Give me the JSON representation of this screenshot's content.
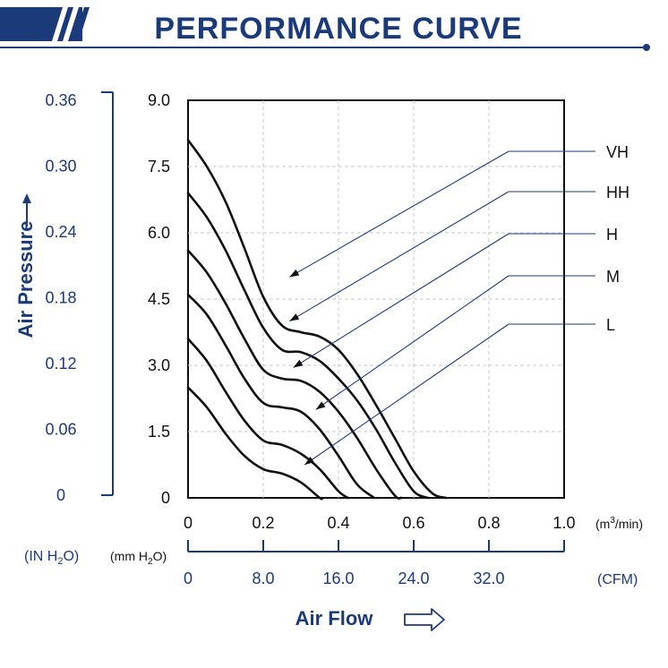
{
  "header": {
    "title": "PERFORMANCE CURVE"
  },
  "colors": {
    "brand": "#1b3a7a",
    "curve": "#111111",
    "grid": "#c8c8c8"
  },
  "chart_data": {
    "type": "line",
    "title": "PERFORMANCE CURVE",
    "xlabel": "Air Flow",
    "ylabel": "Air Pressure",
    "x_unit_primary": "(m3/min)",
    "x_unit_secondary": "(CFM)",
    "y_unit_primary": "(mm H2O)",
    "y_unit_secondary": "(IN H2O)",
    "xlim": [
      0,
      1.0
    ],
    "ylim": [
      0,
      9.0
    ],
    "x_ticks": [
      "0",
      "0.2",
      "0.4",
      "0.6",
      "0.8",
      "1.0"
    ],
    "x_ticks_cfm": [
      "0",
      "8.0",
      "16.0",
      "24.0",
      "32.0"
    ],
    "y_ticks": [
      "0",
      "1.5",
      "3.0",
      "4.5",
      "6.0",
      "7.5",
      "9.0"
    ],
    "y_ticks_inh2o": [
      "0",
      "0.06",
      "0.12",
      "0.18",
      "0.24",
      "0.30",
      "0.36"
    ],
    "grid": true,
    "legend": "right",
    "series": [
      {
        "name": "VH",
        "x": [
          0.0,
          0.05,
          0.1,
          0.15,
          0.2,
          0.25,
          0.3,
          0.35,
          0.4,
          0.45,
          0.5,
          0.55,
          0.6,
          0.65,
          0.686
        ],
        "y": [
          8.1,
          7.5,
          6.7,
          5.65,
          4.55,
          3.9,
          3.75,
          3.65,
          3.35,
          2.8,
          2.1,
          1.35,
          0.6,
          0.1,
          0.0
        ],
        "pointer": [
          0.27,
          5.0
        ]
      },
      {
        "name": "HH",
        "x": [
          0.0,
          0.05,
          0.1,
          0.15,
          0.2,
          0.25,
          0.3,
          0.35,
          0.4,
          0.45,
          0.5,
          0.55,
          0.6,
          0.638
        ],
        "y": [
          6.9,
          6.35,
          5.6,
          4.7,
          3.85,
          3.35,
          3.3,
          3.1,
          2.7,
          2.2,
          1.55,
          0.8,
          0.15,
          0.0
        ],
        "pointer": [
          0.27,
          4.0
        ]
      },
      {
        "name": "H",
        "x": [
          0.0,
          0.05,
          0.1,
          0.15,
          0.2,
          0.25,
          0.3,
          0.35,
          0.4,
          0.45,
          0.5,
          0.55,
          0.567
        ],
        "y": [
          5.6,
          5.1,
          4.4,
          3.6,
          2.9,
          2.7,
          2.65,
          2.4,
          1.95,
          1.35,
          0.65,
          0.05,
          0.0
        ],
        "pointer": [
          0.28,
          2.95
        ]
      },
      {
        "name": "M",
        "x": [
          0.0,
          0.05,
          0.1,
          0.15,
          0.2,
          0.25,
          0.3,
          0.35,
          0.4,
          0.45,
          0.495
        ],
        "y": [
          4.6,
          4.15,
          3.45,
          2.7,
          2.15,
          2.05,
          1.95,
          1.55,
          0.95,
          0.3,
          0.0
        ],
        "pointer": [
          0.34,
          2.0
        ]
      },
      {
        "name": "L",
        "x": [
          0.0,
          0.05,
          0.1,
          0.15,
          0.2,
          0.25,
          0.3,
          0.35,
          0.4,
          0.425
        ],
        "y": [
          3.6,
          3.1,
          2.4,
          1.75,
          1.3,
          1.2,
          1.0,
          0.65,
          0.15,
          0.0
        ],
        "pointer": [
          0.31,
          0.75
        ]
      },
      {
        "name": "",
        "x": [
          0.0,
          0.05,
          0.1,
          0.15,
          0.2,
          0.25,
          0.3,
          0.35,
          0.356
        ],
        "y": [
          2.5,
          2.05,
          1.45,
          0.95,
          0.65,
          0.55,
          0.35,
          0.0,
          0.0
        ],
        "pointer": null
      }
    ]
  },
  "labels": {
    "air_pressure": "Air Pressure",
    "air_flow": "Air Flow",
    "unit_mmh2o": "(mm H2O)",
    "unit_inh2o": "(IN H2O)",
    "unit_m3min": "(m3/min)",
    "unit_cfm": "(CFM)"
  }
}
